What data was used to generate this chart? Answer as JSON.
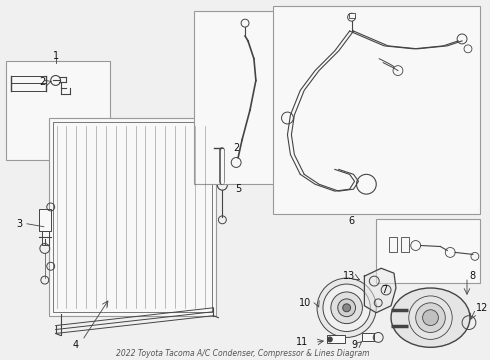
{
  "title": "2022 Toyota Tacoma A/C Condenser, Compressor & Lines Diagram",
  "bg_color": "#f0f0f0",
  "box_fill": "#f8f8f8",
  "box_stroke": "#999999",
  "line_color": "#444444",
  "label_color": "#111111",
  "fig_width": 4.9,
  "fig_height": 3.6,
  "dpi": 100
}
